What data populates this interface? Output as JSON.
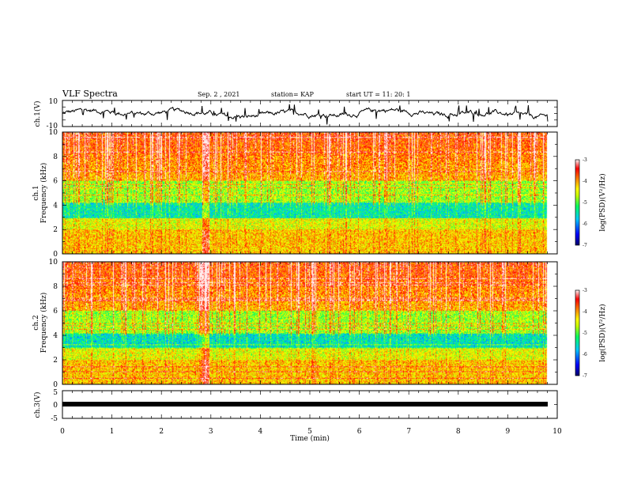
{
  "header": {
    "title": "VLF Spectra",
    "date": "Sep. 2  , 2021",
    "station": "station= KAP",
    "start": "start  UT  =   11: 20: 1"
  },
  "chart_data": [
    {
      "type": "line",
      "name": "ch1-waveform",
      "ylabel": "ch.1(V)",
      "ylim": [
        -10,
        10
      ],
      "yticks": [
        "10",
        "-10"
      ],
      "xlim": [
        0,
        10
      ]
    },
    {
      "type": "heatmap",
      "name": "ch1-spectrogram",
      "ylabel": "ch.1\nFrequency (kHz)",
      "ylim": [
        0,
        10
      ],
      "yticks": [
        "0",
        "2",
        "4",
        "6",
        "8",
        "10"
      ],
      "xlim": [
        0,
        10
      ],
      "colorbar": {
        "label": "log(PSD)(V²/Hz)",
        "ticks": [
          "-3",
          "-4",
          "-5",
          "-6",
          "-7"
        ],
        "range": [
          -7,
          -3
        ]
      }
    },
    {
      "type": "heatmap",
      "name": "ch2-spectrogram",
      "ylabel": "ch.2\nFrequency (kHz)",
      "ylim": [
        0,
        10
      ],
      "yticks": [
        "0",
        "2",
        "4",
        "6",
        "8",
        "10"
      ],
      "xlim": [
        0,
        10
      ],
      "colorbar": {
        "label": "log(PSD)(V²/Hz)",
        "ticks": [
          "-3",
          "-4",
          "-5",
          "-6",
          "-7"
        ],
        "range": [
          -7,
          -3
        ]
      }
    },
    {
      "type": "line",
      "name": "ch3-waveform",
      "ylabel": "ch.3(V)",
      "ylim": [
        -5,
        5
      ],
      "yticks": [
        "5",
        "0",
        "-5"
      ],
      "xlim": [
        0,
        10
      ],
      "xlabel": "Time  (min)",
      "xticks": [
        "0",
        "1",
        "2",
        "3",
        "4",
        "5",
        "6",
        "7",
        "8",
        "9",
        "10"
      ]
    }
  ],
  "labels": {
    "ch1_wave_ylabel": "ch.1(V)",
    "ch1_spec_ylabel_a": "ch.1",
    "ch1_spec_ylabel_b": "Frequency (kHz)",
    "ch2_spec_ylabel_a": "ch.2",
    "ch2_spec_ylabel_b": "Frequency (kHz)",
    "ch3_wave_ylabel": "ch.3(V)",
    "xlabel": "Time  (min)",
    "cbar_label": "log(PSD)(V²/Hz)"
  },
  "colors": {
    "background": "#ffffff",
    "axis": "#000000",
    "colormap": [
      "#000080",
      "#0000ff",
      "#00c8ff",
      "#00ff64",
      "#c8ff00",
      "#ffff00",
      "#ff8000",
      "#ff0000",
      "#ffffff"
    ]
  }
}
